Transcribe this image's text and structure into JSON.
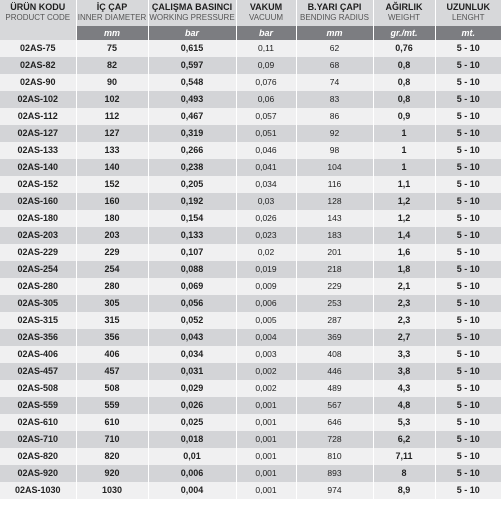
{
  "columns": [
    {
      "title": "ÜRÜN KODU",
      "subtitle": "PRODUCT CODE",
      "unit": ""
    },
    {
      "title": "İÇ ÇAP",
      "subtitle": "INNER DIAMETER",
      "unit": "mm"
    },
    {
      "title": "ÇALIŞMA BASINCI",
      "subtitle": "WORKING PRESSURE",
      "unit": "bar"
    },
    {
      "title": "VAKUM",
      "subtitle": "VACUUM",
      "unit": "bar"
    },
    {
      "title": "B.YARI ÇAPI",
      "subtitle": "BENDING RADIUS",
      "unit": "mm"
    },
    {
      "title": "AĞIRLIK",
      "subtitle": "WEIGHT",
      "unit": "gr./mt."
    },
    {
      "title": "UZUNLUK",
      "subtitle": "LENGHT",
      "unit": "mt."
    }
  ],
  "rows": [
    [
      "02AS-75",
      "75",
      "0,615",
      "0,11",
      "62",
      "0,76",
      "5 - 10"
    ],
    [
      "02AS-82",
      "82",
      "0,597",
      "0,09",
      "68",
      "0,8",
      "5 - 10"
    ],
    [
      "02AS-90",
      "90",
      "0,548",
      "0,076",
      "74",
      "0,8",
      "5 - 10"
    ],
    [
      "02AS-102",
      "102",
      "0,493",
      "0,06",
      "83",
      "0,8",
      "5 - 10"
    ],
    [
      "02AS-112",
      "112",
      "0,467",
      "0,057",
      "86",
      "0,9",
      "5 - 10"
    ],
    [
      "02AS-127",
      "127",
      "0,319",
      "0,051",
      "92",
      "1",
      "5 - 10"
    ],
    [
      "02AS-133",
      "133",
      "0,266",
      "0,046",
      "98",
      "1",
      "5 - 10"
    ],
    [
      "02AS-140",
      "140",
      "0,238",
      "0,041",
      "104",
      "1",
      "5 - 10"
    ],
    [
      "02AS-152",
      "152",
      "0,205",
      "0,034",
      "116",
      "1,1",
      "5 - 10"
    ],
    [
      "02AS-160",
      "160",
      "0,192",
      "0,03",
      "128",
      "1,2",
      "5 - 10"
    ],
    [
      "02AS-180",
      "180",
      "0,154",
      "0,026",
      "143",
      "1,2",
      "5 - 10"
    ],
    [
      "02AS-203",
      "203",
      "0,133",
      "0,023",
      "183",
      "1,4",
      "5 - 10"
    ],
    [
      "02AS-229",
      "229",
      "0,107",
      "0,02",
      "201",
      "1,6",
      "5 - 10"
    ],
    [
      "02AS-254",
      "254",
      "0,088",
      "0,019",
      "218",
      "1,8",
      "5 - 10"
    ],
    [
      "02AS-280",
      "280",
      "0,069",
      "0,009",
      "229",
      "2,1",
      "5 - 10"
    ],
    [
      "02AS-305",
      "305",
      "0,056",
      "0,006",
      "253",
      "2,3",
      "5 - 10"
    ],
    [
      "02AS-315",
      "315",
      "0,052",
      "0,005",
      "287",
      "2,3",
      "5 - 10"
    ],
    [
      "02AS-356",
      "356",
      "0,043",
      "0,004",
      "369",
      "2,7",
      "5 - 10"
    ],
    [
      "02AS-406",
      "406",
      "0,034",
      "0,003",
      "408",
      "3,3",
      "5 - 10"
    ],
    [
      "02AS-457",
      "457",
      "0,031",
      "0,002",
      "446",
      "3,8",
      "5 - 10"
    ],
    [
      "02AS-508",
      "508",
      "0,029",
      "0,002",
      "489",
      "4,3",
      "5 - 10"
    ],
    [
      "02AS-559",
      "559",
      "0,026",
      "0,001",
      "567",
      "4,8",
      "5 - 10"
    ],
    [
      "02AS-610",
      "610",
      "0,025",
      "0,001",
      "646",
      "5,3",
      "5 - 10"
    ],
    [
      "02AS-710",
      "710",
      "0,018",
      "0,001",
      "728",
      "6,2",
      "5 - 10"
    ],
    [
      "02AS-820",
      "820",
      "0,01",
      "0,001",
      "810",
      "7,11",
      "5 - 10"
    ],
    [
      "02AS-920",
      "920",
      "0,006",
      "0,001",
      "893",
      "8",
      "5 - 10"
    ],
    [
      "02AS-1030",
      "1030",
      "0,004",
      "0,001",
      "974",
      "8,9",
      "5 - 10"
    ]
  ],
  "colors": {
    "header_bg": "#d7d8da",
    "unit_row_bg": "#7c7d81",
    "unit_row_text": "#ffffff",
    "row_odd": "#f0f0f1",
    "row_even": "#d3d4d7"
  }
}
